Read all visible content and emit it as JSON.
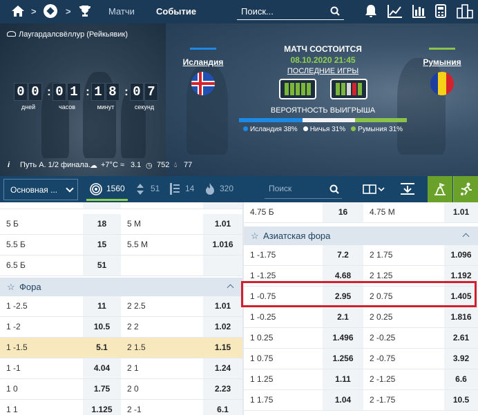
{
  "nav": {
    "links": [
      "Матчи",
      "Событие"
    ],
    "search_placeholder": "Поиск...",
    "separator": ">"
  },
  "banner": {
    "stadium": "Лаугардалсвёллур (Рейкьявик)",
    "timer": {
      "days": "00",
      "hours": "01",
      "minutes": "18",
      "seconds": "07",
      "labels": [
        "дней",
        "часов",
        "минут",
        "секунд"
      ]
    },
    "home": {
      "name": "Исландия",
      "bar_color": "#1e88e5"
    },
    "away": {
      "name": "Румыния",
      "bar_color": "#8bc34a"
    },
    "match_title": "МАТЧ СОСТОИТСЯ",
    "match_date": "08.10.2020 21:45",
    "last_games": "ПОСЛЕДНИЕ ИГРЫ",
    "prob_title": "ВЕРОЯТНОСТЬ ВЫИГРЫША",
    "probability": {
      "home": 38,
      "draw": 31,
      "away": 31
    },
    "legend": [
      "Исландия 38%",
      "Ничья 31%",
      "Румыния 31%"
    ],
    "info": {
      "stage": "Путь А. 1/2 финала.",
      "temp": "+7°C",
      "wind": "3.1",
      "pressure": "752",
      "humidity": "77"
    }
  },
  "toolbar": {
    "dropdown": "Основная ...",
    "counts": [
      "1560",
      "51",
      "14",
      "320"
    ],
    "search_placeholder": "Поиск"
  },
  "left": {
    "top_rows": [
      {
        "l1": "5 Б",
        "o1": "18",
        "l2": "5 М",
        "o2": "1.01"
      },
      {
        "l1": "5.5 Б",
        "o1": "15",
        "l2": "5.5 М",
        "o2": "1.016"
      },
      {
        "l1": "6.5 Б",
        "o1": "51",
        "l2": "",
        "o2": ""
      }
    ],
    "section": "Фора",
    "rows": [
      {
        "l1": "1 -2.5",
        "o1": "11",
        "l2": "2 2.5",
        "o2": "1.01"
      },
      {
        "l1": "1 -2",
        "o1": "10.5",
        "l2": "2 2",
        "o2": "1.02"
      },
      {
        "l1": "1 -1.5",
        "o1": "5.1",
        "l2": "2 1.5",
        "o2": "1.15"
      },
      {
        "l1": "1 -1",
        "o1": "4.04",
        "l2": "2 1",
        "o2": "1.24"
      },
      {
        "l1": "1 0",
        "o1": "1.75",
        "l2": "2 0",
        "o2": "2.23"
      },
      {
        "l1": "1 1",
        "o1": "1.125",
        "l2": "2 -1",
        "o2": "6.1"
      }
    ]
  },
  "right": {
    "top_row": {
      "l1": "4.75 Б",
      "o1": "16",
      "l2": "4.75 М",
      "o2": "1.01"
    },
    "section": "Азиатская фора",
    "rows": [
      {
        "l1": "1 -1.75",
        "o1": "7.2",
        "l2": "2 1.75",
        "o2": "1.096"
      },
      {
        "l1": "1 -1.25",
        "o1": "4.68",
        "l2": "2 1.25",
        "o2": "1.192"
      },
      {
        "l1": "1 -0.75",
        "o1": "2.95",
        "l2": "2 0.75",
        "o2": "1.405"
      },
      {
        "l1": "1 -0.25",
        "o1": "2.1",
        "l2": "2 0.25",
        "o2": "1.816"
      },
      {
        "l1": "1 0.25",
        "o1": "1.496",
        "l2": "2 -0.25",
        "o2": "2.61"
      },
      {
        "l1": "1 0.75",
        "o1": "1.256",
        "l2": "2 -0.75",
        "o2": "3.92"
      },
      {
        "l1": "1 1.25",
        "o1": "1.11",
        "l2": "2 -1.25",
        "o2": "6.6"
      },
      {
        "l1": "1 1.75",
        "o1": "1.04",
        "l2": "2 -1.75",
        "o2": "10.5"
      }
    ]
  }
}
